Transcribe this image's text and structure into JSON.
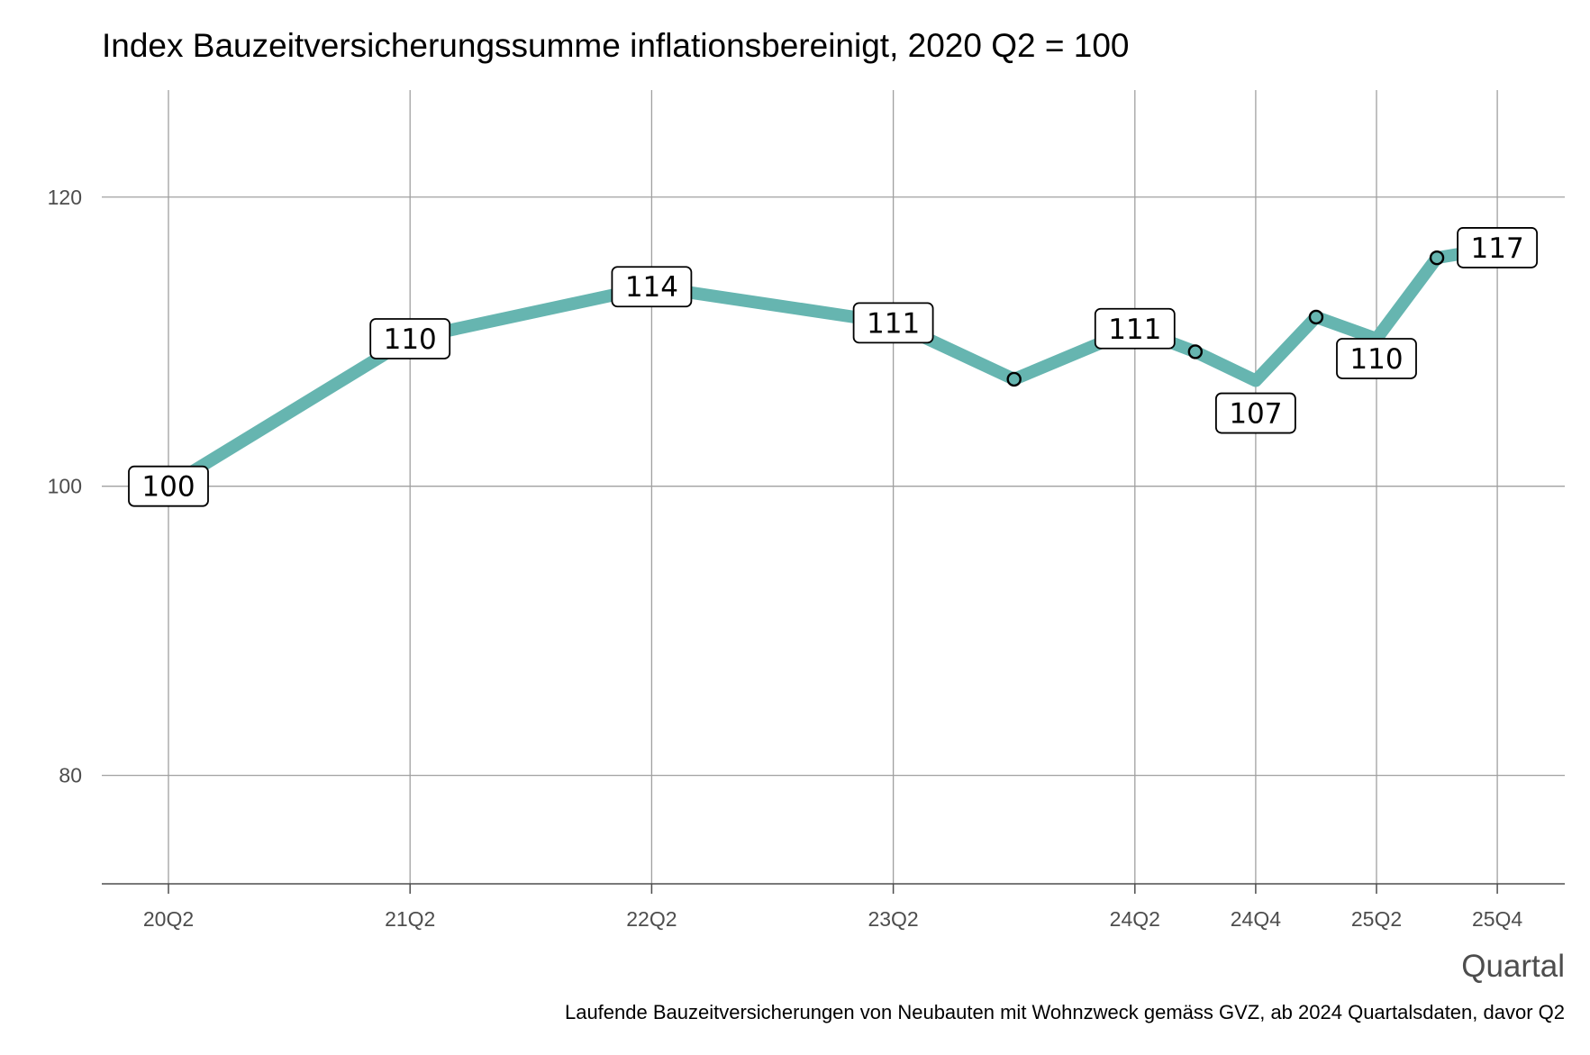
{
  "chart_data": {
    "type": "line",
    "title": "Index Bauzeitversicherungssumme inflationsbereinigt, 2020 Q2 = 100",
    "xlabel": "Quartal",
    "ylabel": "",
    "caption": "Laufende Bauzeitversicherungen von Neubauten mit Wohnzweck gemäss GVZ, ab 2024 Quartalsdaten, davor Q2",
    "ylim": [
      72.5,
      127.4
    ],
    "yticks": [
      80,
      100,
      120
    ],
    "xticks": [
      "20Q2",
      "21Q2",
      "22Q2",
      "23Q2",
      "24Q2",
      "24Q4",
      "25Q2",
      "25Q4"
    ],
    "grid": true,
    "line_color": "#66b5b0",
    "points": [
      {
        "x": "20Q2",
        "y": 100.0,
        "label": "100"
      },
      {
        "x": "21Q2",
        "y": 110.2,
        "label": "110"
      },
      {
        "x": "22Q2",
        "y": 113.8,
        "label": "114"
      },
      {
        "x": "23Q2",
        "y": 111.3,
        "label": "111"
      },
      {
        "x": "23Q4",
        "y": 107.4,
        "label": null
      },
      {
        "x": "24Q2",
        "y": 110.9,
        "label": "111"
      },
      {
        "x": "24Q3",
        "y": 109.3,
        "label": null
      },
      {
        "x": "24Q4",
        "y": 107.3,
        "label": "107"
      },
      {
        "x": "25Q1",
        "y": 111.7,
        "label": null
      },
      {
        "x": "25Q2",
        "y": 110.2,
        "label": "110"
      },
      {
        "x": "25Q3",
        "y": 115.8,
        "label": null
      },
      {
        "x": "25Q4",
        "y": 116.5,
        "label": "117"
      }
    ]
  }
}
